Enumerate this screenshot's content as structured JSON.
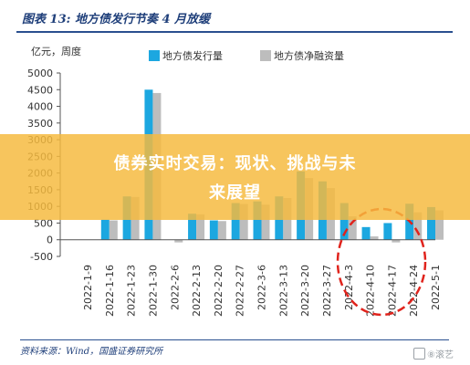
{
  "header": {
    "title": "图表 13: 地方债发行节奏 4 月放缓"
  },
  "chart_data": {
    "type": "bar",
    "ylabel": "亿元，周度",
    "ylim": [
      -500,
      5000
    ],
    "yticks": [
      -500,
      0,
      500,
      1000,
      1500,
      2000,
      2500,
      3000,
      3500,
      4000,
      4500,
      5000
    ],
    "categories": [
      "2022-1-9",
      "2022-1-16",
      "2022-1-23",
      "2022-1-30",
      "2022-2-6",
      "2022-2-13",
      "2022-2-20",
      "2022-2-27",
      "2022-3-6",
      "2022-3-13",
      "2022-3-20",
      "2022-3-27",
      "2022-4-3",
      "2022-4-10",
      "2022-4-17",
      "2022-4-24",
      "2022-5-1"
    ],
    "series": [
      {
        "name": "地方债发行量",
        "color": "#1ca7e0",
        "values": [
          0,
          600,
          1300,
          4500,
          0,
          780,
          580,
          1100,
          1150,
          1300,
          2050,
          1750,
          1100,
          380,
          500,
          1080,
          980
        ]
      },
      {
        "name": "地方债净融资量",
        "color": "#bdbdbd",
        "values": [
          0,
          580,
          1280,
          4400,
          -80,
          760,
          560,
          1070,
          1050,
          1250,
          1850,
          1550,
          700,
          100,
          -80,
          820,
          880
        ]
      }
    ],
    "legend_position": "top",
    "annotation": "red dashed circle around 2022-4-3 to 2022-4-24"
  },
  "banner": {
    "line1": "债券实时交易：现状、挑战与未",
    "line2": "来展望"
  },
  "footer": {
    "source": "资料来源：Wind，国盛证券研究所"
  },
  "watermark": {
    "text": "⑧滚艺"
  }
}
